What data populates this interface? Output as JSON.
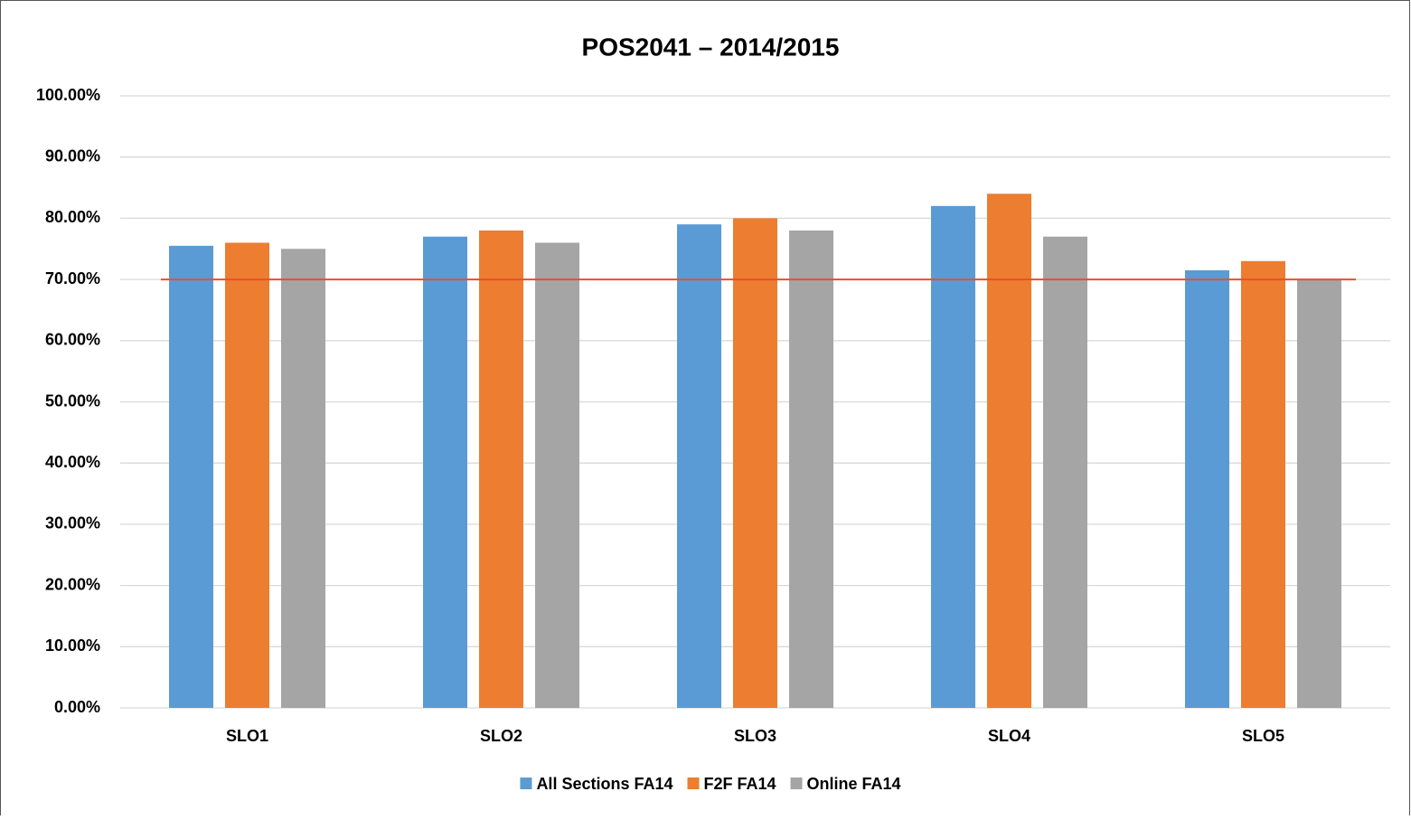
{
  "chart_data": {
    "type": "bar",
    "title": "POS2041 – 2014/2015",
    "categories": [
      "SLO1",
      "SLO2",
      "SLO3",
      "SLO4",
      "SLO5"
    ],
    "series": [
      {
        "name": "All Sections FA14",
        "color": "#5b9bd5",
        "values": [
          75.5,
          77,
          79,
          82,
          71.5
        ]
      },
      {
        "name": "F2F FA14",
        "color": "#ed7d31",
        "values": [
          76,
          78,
          80,
          84,
          73
        ]
      },
      {
        "name": "Online FA14",
        "color": "#a5a5a5",
        "values": [
          75,
          76,
          78,
          77,
          70
        ]
      }
    ],
    "reference_line": 70,
    "reference_color": "#e8502a",
    "ylim": [
      0,
      100
    ],
    "yticks": [
      {
        "value": 0,
        "label": "0.00%"
      },
      {
        "value": 10,
        "label": "10.00%"
      },
      {
        "value": 20,
        "label": "20.00%"
      },
      {
        "value": 30,
        "label": "30.00%"
      },
      {
        "value": 40,
        "label": "40.00%"
      },
      {
        "value": 50,
        "label": "50.00%"
      },
      {
        "value": 60,
        "label": "60.00%"
      },
      {
        "value": 70,
        "label": "70.00%"
      },
      {
        "value": 80,
        "label": "80.00%"
      },
      {
        "value": 90,
        "label": "90.00%"
      },
      {
        "value": 100,
        "label": "100.00%"
      }
    ],
    "grid": true,
    "legend": "bottom"
  }
}
